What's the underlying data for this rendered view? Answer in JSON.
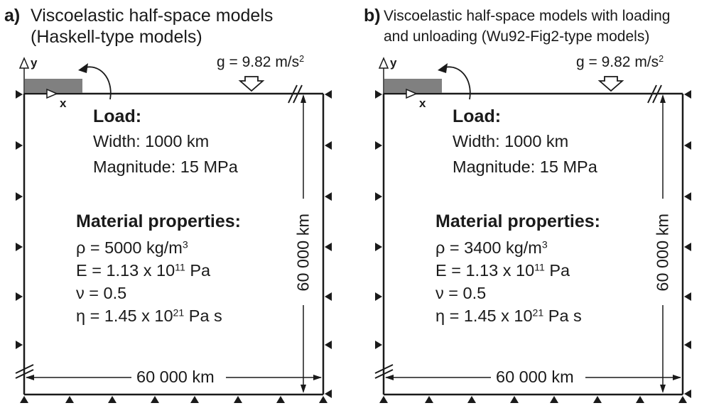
{
  "panels": [
    {
      "letter": "a)",
      "title_line1": "Viscoelastic half-space models",
      "title_line2": "(Haskell-type models)",
      "axis_y": "y",
      "axis_x": "x",
      "gravity_prefix": "g = 9.82 m/s",
      "gravity_sup": "2",
      "load": {
        "heading": "Load:",
        "width": "Width: 1000 km",
        "magnitude": "Magnitude: 15 MPa"
      },
      "material": {
        "heading": "Material properties:",
        "density_prefix": "ρ = 5000 kg/m",
        "density_sup": "3",
        "young_prefix": "E = 1.13 x 10",
        "young_sup": "11",
        "young_suffix": " Pa",
        "poisson": "ν = 0.5",
        "visc_prefix": "η = 1.45 x 10",
        "visc_sup": "21",
        "visc_suffix": " Pa s"
      },
      "dim_horizontal": "60 000 km",
      "dim_vertical": "60 000 km"
    },
    {
      "letter": "b)",
      "title_line1": "Viscoelastic half-space models with loading",
      "title_line2": "and unloading (Wu92-Fig2-type models)",
      "axis_y": "y",
      "axis_x": "x",
      "gravity_prefix": "g = 9.82 m/s",
      "gravity_sup": "2",
      "load": {
        "heading": "Load:",
        "width": "Width: 1000 km",
        "magnitude": "Magnitude: 15 MPa"
      },
      "material": {
        "heading": "Material properties:",
        "density_prefix": "ρ = 3400 kg/m",
        "density_sup": "3",
        "young_prefix": "E = 1.13 x 10",
        "young_sup": "11",
        "young_suffix": " Pa",
        "poisson": "ν = 0.5",
        "visc_prefix": "η = 1.45 x 10",
        "visc_sup": "21",
        "visc_suffix": " Pa s"
      },
      "dim_horizontal": "60 000 km",
      "dim_vertical": "60 000 km"
    }
  ],
  "colors": {
    "line": "#1a1a1a",
    "load_block": "#808080",
    "background": "#ffffff"
  }
}
